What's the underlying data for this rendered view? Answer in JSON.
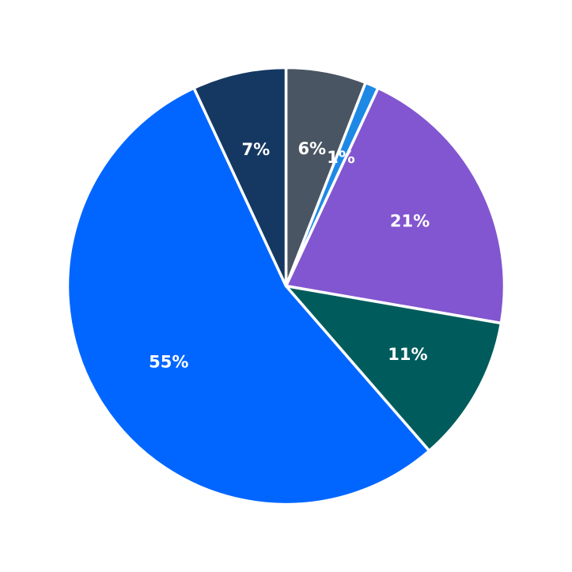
{
  "chart_data": {
    "type": "pie",
    "start_angle_deg": 0,
    "direction": "clockwise",
    "legend": "none",
    "slices": [
      {
        "value": 6,
        "label": "6%",
        "color": "#4a5563"
      },
      {
        "value": 1,
        "label": "1%",
        "color": "#1e88e5"
      },
      {
        "value": 21,
        "label": "21%",
        "color": "#8256d0"
      },
      {
        "value": 11,
        "label": "11%",
        "color": "#005c5c"
      },
      {
        "value": 55,
        "label": "55%",
        "color": "#0066ff"
      },
      {
        "value": 7,
        "label": "7%",
        "color": "#143861"
      }
    ]
  }
}
